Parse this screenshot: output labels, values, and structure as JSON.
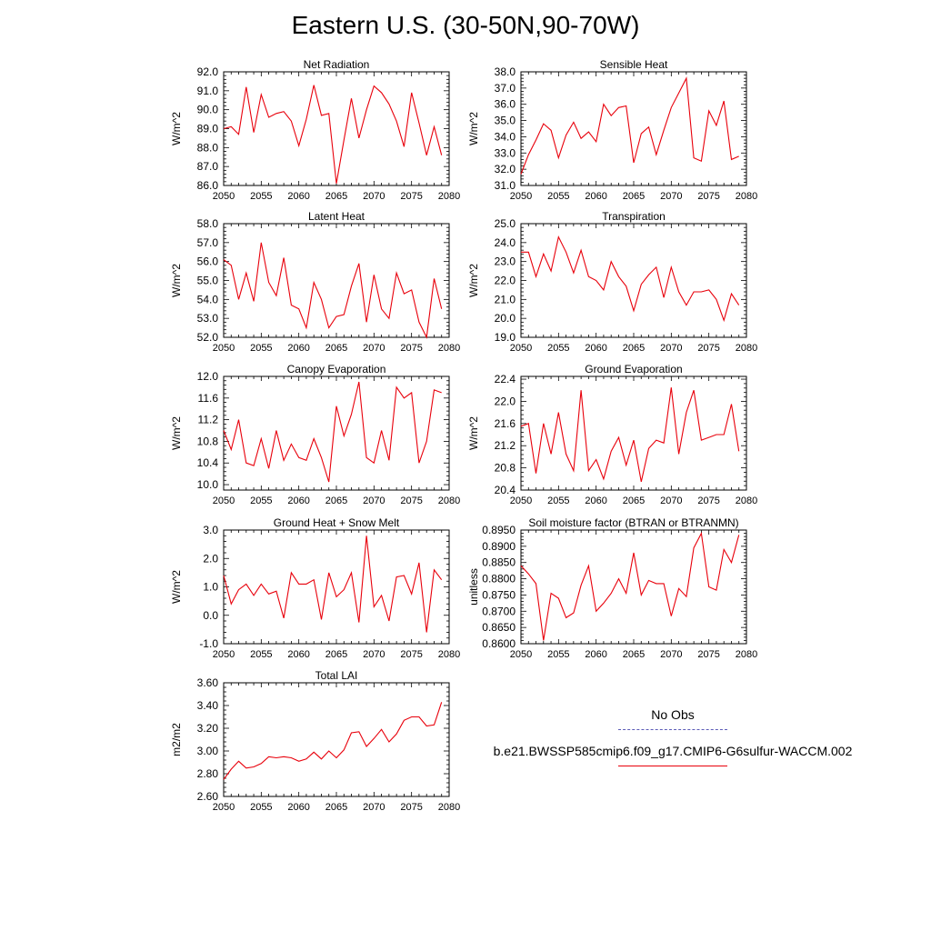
{
  "title": "Eastern U.S. (30-50N,90-70W)",
  "colors": {
    "series": "#e8000b",
    "obs": "#5b5bb8",
    "axis": "#000000"
  },
  "legend": {
    "obs_label": "No Obs",
    "model_label": "b.e21.BWSSP585cmip6.f09_g17.CMIP6-G6sulfur-WACCM.002"
  },
  "chart_data": [
    {
      "type": "line",
      "title": "Net Radiation",
      "ylabel": "W/m^2",
      "xlim": [
        2050,
        2080
      ],
      "ylim": [
        86.0,
        92.0
      ],
      "xticks": [
        "2050",
        "2055",
        "2060",
        "2065",
        "2070",
        "2075",
        "2080"
      ],
      "yticks": [
        "86.0",
        "87.0",
        "88.0",
        "89.0",
        "90.0",
        "91.0",
        "92.0"
      ],
      "x_start": 2050,
      "values": [
        89.0,
        89.1,
        88.7,
        91.2,
        88.8,
        90.8,
        89.6,
        89.8,
        89.9,
        89.4,
        88.1,
        89.5,
        91.3,
        89.7,
        89.8,
        86.1,
        88.4,
        90.6,
        88.5,
        90.0,
        91.25,
        90.9,
        90.3,
        89.4,
        88.05,
        90.9,
        89.3,
        87.6,
        89.1,
        87.6
      ]
    },
    {
      "type": "line",
      "title": "Sensible Heat",
      "ylabel": "W/m^2",
      "xlim": [
        2050,
        2080
      ],
      "ylim": [
        31.0,
        38.0
      ],
      "xticks": [
        "2050",
        "2055",
        "2060",
        "2065",
        "2070",
        "2075",
        "2080"
      ],
      "yticks": [
        "31.0",
        "32.0",
        "33.0",
        "34.0",
        "35.0",
        "36.0",
        "37.0",
        "38.0"
      ],
      "x_start": 2050,
      "values": [
        31.7,
        32.9,
        33.8,
        34.8,
        34.4,
        32.7,
        34.1,
        34.9,
        33.9,
        34.3,
        33.7,
        36.0,
        35.3,
        35.8,
        35.9,
        32.4,
        34.2,
        34.6,
        32.9,
        34.4,
        35.8,
        36.7,
        37.6,
        32.7,
        32.5,
        35.6,
        34.7,
        36.2,
        32.6,
        32.8
      ]
    },
    {
      "type": "line",
      "title": "Latent Heat",
      "ylabel": "W/m^2",
      "xlim": [
        2050,
        2080
      ],
      "ylim": [
        52.0,
        58.0
      ],
      "xticks": [
        "2050",
        "2055",
        "2060",
        "2065",
        "2070",
        "2075",
        "2080"
      ],
      "yticks": [
        "52.0",
        "53.0",
        "54.0",
        "55.0",
        "56.0",
        "57.0",
        "58.0"
      ],
      "x_start": 2050,
      "values": [
        56.1,
        55.8,
        54.0,
        55.4,
        53.9,
        57.0,
        54.9,
        54.2,
        56.2,
        53.7,
        53.5,
        52.5,
        54.9,
        54.0,
        52.5,
        53.1,
        53.2,
        54.7,
        55.9,
        52.8,
        55.3,
        53.5,
        53.0,
        55.4,
        54.3,
        54.5,
        52.8,
        52.0,
        55.1,
        53.5
      ]
    },
    {
      "type": "line",
      "title": "Transpiration",
      "ylabel": "W/m^2",
      "xlim": [
        2050,
        2080
      ],
      "ylim": [
        19.0,
        25.0
      ],
      "xticks": [
        "2050",
        "2055",
        "2060",
        "2065",
        "2070",
        "2075",
        "2080"
      ],
      "yticks": [
        "19.0",
        "20.0",
        "21.0",
        "22.0",
        "23.0",
        "24.0",
        "25.0"
      ],
      "x_start": 2050,
      "values": [
        23.5,
        23.5,
        22.2,
        23.4,
        22.5,
        24.3,
        23.5,
        22.4,
        23.6,
        22.2,
        22.0,
        21.5,
        23.0,
        22.2,
        21.7,
        20.4,
        21.8,
        22.3,
        22.7,
        21.1,
        22.7,
        21.4,
        20.7,
        21.4,
        21.4,
        21.5,
        21.0,
        19.9,
        21.3,
        20.7
      ]
    },
    {
      "type": "line",
      "title": "Canopy Evaporation",
      "ylabel": "W/m^2",
      "xlim": [
        2050,
        2080
      ],
      "ylim": [
        9.9,
        12.0
      ],
      "xticks": [
        "2050",
        "2055",
        "2060",
        "2065",
        "2070",
        "2075",
        "2080"
      ],
      "yticks": [
        "10.0",
        "10.4",
        "10.8",
        "11.2",
        "11.6",
        "12.0"
      ],
      "ytick_values": [
        10.0,
        10.4,
        10.8,
        11.2,
        11.6,
        12.0
      ],
      "x_start": 2050,
      "values": [
        11.0,
        10.65,
        11.2,
        10.4,
        10.35,
        10.85,
        10.3,
        11.0,
        10.45,
        10.75,
        10.5,
        10.45,
        10.85,
        10.5,
        10.05,
        11.45,
        10.9,
        11.3,
        11.9,
        10.5,
        10.4,
        11.0,
        10.45,
        11.8,
        11.6,
        11.7,
        10.4,
        10.8,
        11.75,
        11.7
      ]
    },
    {
      "type": "line",
      "title": "Ground Evaporation",
      "ylabel": "W/m^2",
      "xlim": [
        2050,
        2080
      ],
      "ylim": [
        20.4,
        22.45
      ],
      "xticks": [
        "2050",
        "2055",
        "2060",
        "2065",
        "2070",
        "2075",
        "2080"
      ],
      "yticks": [
        "20.4",
        "20.8",
        "21.2",
        "21.6",
        "22.0",
        "22.4"
      ],
      "ytick_values": [
        20.4,
        20.8,
        21.2,
        21.6,
        22.0,
        22.4
      ],
      "x_start": 2050,
      "values": [
        21.55,
        21.6,
        20.7,
        21.6,
        21.05,
        21.8,
        21.05,
        20.75,
        22.2,
        20.75,
        20.95,
        20.6,
        21.1,
        21.35,
        20.85,
        21.3,
        20.55,
        21.15,
        21.3,
        21.25,
        22.25,
        21.05,
        21.8,
        22.2,
        21.3,
        21.35,
        21.4,
        21.4,
        21.95,
        21.1
      ]
    },
    {
      "type": "line",
      "title": "Ground Heat + Snow Melt",
      "ylabel": "W/m^2",
      "xlim": [
        2050,
        2080
      ],
      "ylim": [
        -1.0,
        3.0
      ],
      "xticks": [
        "2050",
        "2055",
        "2060",
        "2065",
        "2070",
        "2075",
        "2080"
      ],
      "yticks": [
        "-1.0",
        "0.0",
        "1.0",
        "2.0",
        "3.0"
      ],
      "x_start": 2050,
      "values": [
        1.4,
        0.4,
        0.9,
        1.1,
        0.7,
        1.1,
        0.75,
        0.85,
        -0.1,
        1.5,
        1.1,
        1.1,
        1.25,
        -0.15,
        1.5,
        0.65,
        0.9,
        1.5,
        -0.25,
        2.8,
        0.3,
        0.7,
        -0.2,
        1.35,
        1.4,
        0.75,
        1.85,
        -0.6,
        1.6,
        1.25
      ]
    },
    {
      "type": "line",
      "title": "Soil moisture factor (BTRAN or BTRANMN)",
      "ylabel": "unitless",
      "xlim": [
        2050,
        2080
      ],
      "ylim": [
        0.86,
        0.895
      ],
      "xticks": [
        "2050",
        "2055",
        "2060",
        "2065",
        "2070",
        "2075",
        "2080"
      ],
      "yticks": [
        "0.8600",
        "0.8650",
        "0.8700",
        "0.8750",
        "0.8800",
        "0.8850",
        "0.8900",
        "0.8950"
      ],
      "x_start": 2050,
      "values": [
        0.884,
        0.8815,
        0.8785,
        0.861,
        0.8755,
        0.874,
        0.868,
        0.8695,
        0.878,
        0.884,
        0.87,
        0.8725,
        0.8755,
        0.88,
        0.8755,
        0.888,
        0.875,
        0.8795,
        0.8785,
        0.8785,
        0.8685,
        0.877,
        0.8745,
        0.8895,
        0.894,
        0.8775,
        0.8765,
        0.889,
        0.885,
        0.8935
      ]
    },
    {
      "type": "line",
      "title": "Total LAI",
      "ylabel": "m2/m2",
      "xlim": [
        2050,
        2080
      ],
      "ylim": [
        2.6,
        3.6
      ],
      "xticks": [
        "2050",
        "2055",
        "2060",
        "2065",
        "2070",
        "2075",
        "2080"
      ],
      "yticks": [
        "2.60",
        "2.80",
        "3.00",
        "3.20",
        "3.40",
        "3.60"
      ],
      "x_start": 2050,
      "values": [
        2.75,
        2.84,
        2.91,
        2.85,
        2.86,
        2.89,
        2.95,
        2.94,
        2.95,
        2.94,
        2.91,
        2.93,
        2.99,
        2.93,
        3.0,
        2.94,
        3.01,
        3.16,
        3.17,
        3.04,
        3.11,
        3.19,
        3.08,
        3.15,
        3.27,
        3.3,
        3.3,
        3.22,
        3.23,
        3.43
      ]
    }
  ]
}
